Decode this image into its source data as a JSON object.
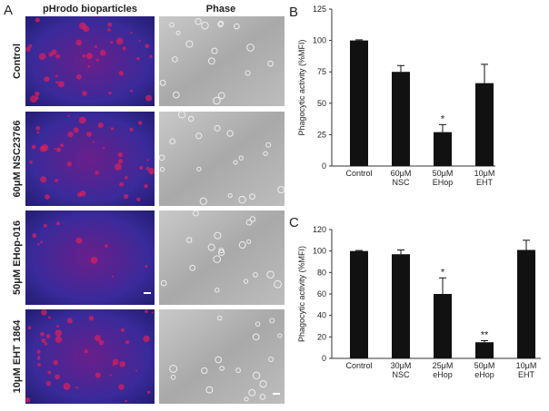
{
  "figure": {
    "panels": [
      "A",
      "B",
      "C"
    ],
    "columns": [
      "pHrodo bioparticles",
      "Phase"
    ],
    "rows": [
      "Control",
      "60μM NSC23766",
      "50μM EHop-016",
      "10μM EHT 1864"
    ]
  },
  "chart_data": [
    {
      "type": "bar",
      "y_label": "Phagocytic activity (%MFI)",
      "categories": [
        "Control",
        "60μM NSC",
        "50μM EHop",
        "10μM EHT"
      ],
      "values": [
        100,
        75,
        27,
        66
      ],
      "errors": [
        0.5,
        5,
        6,
        15
      ],
      "significance": [
        null,
        null,
        "*",
        null
      ],
      "color": "#111111",
      "ylim": [
        0,
        125
      ],
      "yticks": [
        0,
        25,
        50,
        75,
        100,
        125
      ],
      "grid": false
    },
    {
      "type": "bar",
      "y_label": "Phagocytic activity (%MFI)",
      "categories": [
        "Control",
        "30μM NSC",
        "25μM eHop",
        "50μM eHop",
        "10μM EHT"
      ],
      "values": [
        100,
        97,
        60,
        15,
        101
      ],
      "errors": [
        0.5,
        4,
        15,
        1.5,
        9
      ],
      "significance": [
        null,
        null,
        "*",
        "**",
        null
      ],
      "color": "#111111",
      "ylim": [
        0,
        120
      ],
      "yticks": [
        0,
        20,
        40,
        60,
        80,
        100,
        120
      ],
      "grid": false
    }
  ]
}
